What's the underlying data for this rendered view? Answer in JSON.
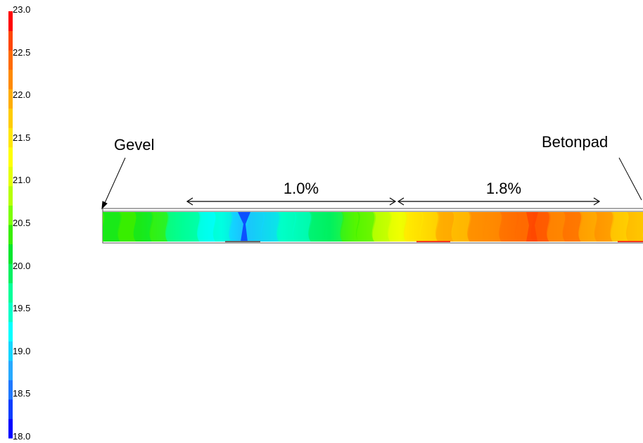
{
  "chart_data": {
    "type": "heatmap",
    "colorbar": {
      "min": 18.0,
      "max": 23.0,
      "tick_labels": [
        "23.0",
        "22.5",
        "22.0",
        "21.5",
        "21.0",
        "20.5",
        "20.0",
        "19.5",
        "19.0",
        "18.5",
        "18.0"
      ],
      "colors": [
        "#0000ff",
        "#0a3cff",
        "#1f78ff",
        "#27a9ff",
        "#13d6ff",
        "#00ffff",
        "#00ffc8",
        "#00ff98",
        "#00f060",
        "#00e62c",
        "#38ee00",
        "#7cff00",
        "#b6ff00",
        "#e4ff00",
        "#ffff00",
        "#ffe600",
        "#ffcc00",
        "#ffad00",
        "#ff8a00",
        "#ff6a00",
        "#ff4500",
        "#ff0000"
      ]
    },
    "annotations": {
      "left_label": "Gevel",
      "right_label": "Betonpad",
      "slope_left": "1.0%",
      "slope_right": "1.8%"
    },
    "field": {
      "description_stops": [
        {
          "x": 0.0,
          "value": 20.3
        },
        {
          "x": 0.07,
          "value": 20.4
        },
        {
          "x": 0.15,
          "value": 19.6
        },
        {
          "x": 0.22,
          "value": 19.2
        },
        {
          "x": 0.26,
          "value": 18.9
        },
        {
          "x": 0.33,
          "value": 19.4
        },
        {
          "x": 0.42,
          "value": 20.0
        },
        {
          "x": 0.47,
          "value": 20.5
        },
        {
          "x": 0.55,
          "value": 21.3
        },
        {
          "x": 0.63,
          "value": 21.9
        },
        {
          "x": 0.72,
          "value": 22.3
        },
        {
          "x": 0.78,
          "value": 22.5
        },
        {
          "x": 0.88,
          "value": 22.2
        },
        {
          "x": 1.0,
          "value": 21.6
        }
      ]
    }
  }
}
